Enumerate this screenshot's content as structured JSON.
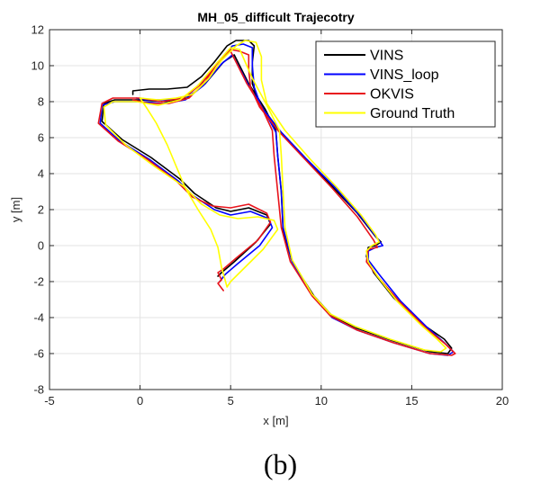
{
  "chart_data": {
    "type": "line",
    "title": "MH_05_difficult Trajecotry",
    "xlabel": "x [m]",
    "ylabel": "y [m]",
    "xlim": [
      -5,
      20
    ],
    "ylim": [
      -8,
      12
    ],
    "xticks": [
      -5,
      0,
      5,
      10,
      15,
      20
    ],
    "yticks": [
      -8,
      -6,
      -4,
      -2,
      0,
      2,
      4,
      6,
      8,
      10,
      12
    ],
    "grid": true,
    "legend_position": "top-right",
    "caption": "(b)",
    "series": [
      {
        "name": "VINS",
        "color": "#000000",
        "points": [
          [
            -0.4,
            8.4
          ],
          [
            -0.4,
            8.6
          ],
          [
            0.5,
            8.7
          ],
          [
            1.5,
            8.7
          ],
          [
            2.6,
            8.8
          ],
          [
            3.4,
            9.4
          ],
          [
            4.1,
            10.2
          ],
          [
            4.8,
            11.1
          ],
          [
            5.3,
            11.4
          ],
          [
            6.0,
            11.4
          ],
          [
            6.3,
            11.1
          ],
          [
            6.2,
            10.2
          ],
          [
            6.2,
            9.0
          ],
          [
            6.6,
            7.9
          ],
          [
            7.6,
            6.5
          ],
          [
            9.0,
            5.0
          ],
          [
            10.5,
            3.4
          ],
          [
            12.0,
            1.8
          ],
          [
            13.0,
            0.5
          ],
          [
            13.3,
            0.2
          ],
          [
            13.0,
            0.0
          ],
          [
            12.6,
            -0.1
          ],
          [
            12.5,
            -0.6
          ],
          [
            12.9,
            -1.5
          ],
          [
            14.0,
            -2.9
          ],
          [
            15.5,
            -4.3
          ],
          [
            16.8,
            -5.2
          ],
          [
            17.2,
            -5.7
          ],
          [
            17.0,
            -6.0
          ],
          [
            16.0,
            -5.9
          ],
          [
            14.0,
            -5.3
          ],
          [
            12.0,
            -4.6
          ],
          [
            10.6,
            -3.9
          ],
          [
            9.6,
            -2.8
          ],
          [
            8.4,
            -0.9
          ],
          [
            7.9,
            0.8
          ],
          [
            7.8,
            3.0
          ],
          [
            7.6,
            5.0
          ],
          [
            7.5,
            6.4
          ],
          [
            6.9,
            7.6
          ],
          [
            6.0,
            9.0
          ],
          [
            5.2,
            10.6
          ],
          [
            4.6,
            10.2
          ],
          [
            3.6,
            9.0
          ],
          [
            2.6,
            8.2
          ],
          [
            1.4,
            8.0
          ],
          [
            0.0,
            8.1
          ],
          [
            -1.4,
            8.1
          ],
          [
            -2.0,
            7.9
          ],
          [
            -2.1,
            6.9
          ],
          [
            -1.0,
            5.9
          ],
          [
            0.6,
            4.9
          ],
          [
            2.2,
            3.7
          ],
          [
            3.0,
            2.9
          ],
          [
            4.2,
            2.1
          ],
          [
            5.0,
            1.9
          ],
          [
            6.0,
            2.1
          ],
          [
            7.0,
            1.7
          ],
          [
            7.2,
            1.2
          ],
          [
            6.4,
            0.2
          ],
          [
            5.2,
            -0.9
          ],
          [
            4.5,
            -1.5
          ],
          [
            4.3,
            -1.7
          ]
        ]
      },
      {
        "name": "VINS_loop",
        "color": "#0000ff",
        "points": [
          [
            -0.2,
            8.2
          ],
          [
            0.3,
            8.1
          ],
          [
            1.5,
            8.1
          ],
          [
            2.6,
            8.3
          ],
          [
            3.5,
            9.2
          ],
          [
            4.3,
            10.2
          ],
          [
            5.1,
            11.1
          ],
          [
            5.7,
            11.2
          ],
          [
            6.2,
            11.0
          ],
          [
            6.2,
            10.0
          ],
          [
            6.3,
            8.8
          ],
          [
            6.7,
            7.7
          ],
          [
            7.8,
            6.3
          ],
          [
            9.2,
            4.8
          ],
          [
            10.8,
            3.2
          ],
          [
            12.2,
            1.6
          ],
          [
            13.1,
            0.4
          ],
          [
            13.4,
            0.0
          ],
          [
            13.0,
            -0.1
          ],
          [
            12.6,
            -0.3
          ],
          [
            12.6,
            -0.8
          ],
          [
            13.2,
            -1.6
          ],
          [
            14.4,
            -3.1
          ],
          [
            15.8,
            -4.5
          ],
          [
            16.8,
            -5.4
          ],
          [
            17.3,
            -5.9
          ],
          [
            17.0,
            -6.1
          ],
          [
            16.0,
            -6.0
          ],
          [
            14.0,
            -5.4
          ],
          [
            12.0,
            -4.7
          ],
          [
            10.6,
            -4.0
          ],
          [
            9.6,
            -2.9
          ],
          [
            8.4,
            -0.9
          ],
          [
            7.9,
            1.0
          ],
          [
            7.8,
            3.0
          ],
          [
            7.6,
            5.0
          ],
          [
            7.5,
            6.3
          ],
          [
            6.8,
            7.6
          ],
          [
            6.0,
            8.9
          ],
          [
            5.1,
            10.6
          ],
          [
            4.5,
            10.1
          ],
          [
            3.5,
            8.9
          ],
          [
            2.5,
            8.1
          ],
          [
            1.3,
            7.9
          ],
          [
            0.0,
            8.0
          ],
          [
            -1.4,
            8.0
          ],
          [
            -2.1,
            7.8
          ],
          [
            -2.2,
            6.8
          ],
          [
            -1.1,
            5.8
          ],
          [
            0.5,
            4.8
          ],
          [
            2.1,
            3.6
          ],
          [
            2.9,
            2.8
          ],
          [
            4.1,
            2.0
          ],
          [
            5.0,
            1.7
          ],
          [
            6.1,
            1.9
          ],
          [
            7.1,
            1.5
          ],
          [
            7.3,
            1.0
          ],
          [
            6.6,
            0.0
          ],
          [
            5.4,
            -1.0
          ],
          [
            4.7,
            -1.6
          ],
          [
            4.4,
            -2.0
          ]
        ]
      },
      {
        "name": "OKVIS",
        "color": "#e8141c",
        "points": [
          [
            -0.4,
            8.1
          ],
          [
            0.5,
            7.9
          ],
          [
            1.6,
            7.9
          ],
          [
            2.7,
            8.2
          ],
          [
            3.6,
            9.1
          ],
          [
            4.3,
            10.2
          ],
          [
            5.0,
            10.9
          ],
          [
            5.5,
            10.8
          ],
          [
            6.0,
            10.6
          ],
          [
            6.0,
            9.8
          ],
          [
            6.1,
            8.8
          ],
          [
            6.6,
            7.7
          ],
          [
            7.7,
            6.3
          ],
          [
            9.1,
            4.8
          ],
          [
            10.6,
            3.2
          ],
          [
            12.0,
            1.6
          ],
          [
            12.9,
            0.3
          ],
          [
            13.1,
            -0.1
          ],
          [
            12.6,
            -0.2
          ],
          [
            12.5,
            -0.9
          ],
          [
            13.1,
            -1.7
          ],
          [
            14.4,
            -3.2
          ],
          [
            15.8,
            -4.6
          ],
          [
            16.9,
            -5.5
          ],
          [
            17.4,
            -6.0
          ],
          [
            17.2,
            -6.1
          ],
          [
            16.0,
            -6.0
          ],
          [
            14.0,
            -5.4
          ],
          [
            12.0,
            -4.7
          ],
          [
            10.5,
            -3.9
          ],
          [
            9.5,
            -2.8
          ],
          [
            8.3,
            -0.9
          ],
          [
            7.8,
            1.0
          ],
          [
            7.6,
            3.0
          ],
          [
            7.4,
            5.0
          ],
          [
            7.3,
            6.4
          ],
          [
            6.7,
            7.7
          ],
          [
            5.9,
            9.0
          ],
          [
            5.0,
            10.8
          ],
          [
            4.4,
            10.3
          ],
          [
            3.4,
            9.0
          ],
          [
            2.4,
            8.2
          ],
          [
            1.2,
            8.0
          ],
          [
            0.0,
            8.2
          ],
          [
            -1.5,
            8.2
          ],
          [
            -2.1,
            7.9
          ],
          [
            -2.3,
            6.8
          ],
          [
            -1.2,
            5.8
          ],
          [
            0.4,
            4.8
          ],
          [
            2.0,
            3.6
          ],
          [
            2.9,
            2.7
          ],
          [
            4.0,
            2.2
          ],
          [
            5.0,
            2.1
          ],
          [
            6.0,
            2.3
          ],
          [
            7.0,
            1.8
          ],
          [
            7.2,
            1.3
          ],
          [
            6.5,
            0.3
          ],
          [
            5.3,
            -0.7
          ],
          [
            4.6,
            -1.3
          ],
          [
            4.3,
            -1.5
          ],
          [
            4.5,
            -1.9
          ],
          [
            4.3,
            -2.1
          ],
          [
            4.6,
            -2.5
          ]
        ]
      },
      {
        "name": "Ground Truth",
        "color": "#ffff00",
        "points": [
          [
            0.0,
            8.2
          ],
          [
            1.0,
            8.1
          ],
          [
            2.0,
            8.2
          ],
          [
            2.9,
            8.4
          ],
          [
            3.8,
            9.3
          ],
          [
            4.5,
            10.3
          ],
          [
            5.3,
            11.1
          ],
          [
            5.8,
            11.4
          ],
          [
            6.4,
            11.3
          ],
          [
            6.7,
            10.5
          ],
          [
            6.7,
            9.2
          ],
          [
            7.0,
            7.9
          ],
          [
            8.0,
            6.4
          ],
          [
            9.4,
            4.8
          ],
          [
            10.9,
            3.2
          ],
          [
            12.2,
            1.7
          ],
          [
            13.0,
            0.6
          ],
          [
            13.2,
            0.2
          ],
          [
            12.8,
            0.0
          ],
          [
            12.5,
            -0.3
          ],
          [
            12.6,
            -0.9
          ],
          [
            13.1,
            -1.7
          ],
          [
            14.2,
            -3.1
          ],
          [
            15.5,
            -4.4
          ],
          [
            16.4,
            -5.2
          ],
          [
            16.9,
            -5.7
          ],
          [
            16.6,
            -5.9
          ],
          [
            15.7,
            -5.8
          ],
          [
            13.8,
            -5.2
          ],
          [
            11.9,
            -4.5
          ],
          [
            10.5,
            -3.8
          ],
          [
            9.5,
            -2.7
          ],
          [
            8.4,
            -0.8
          ],
          [
            8.0,
            1.0
          ],
          [
            7.9,
            3.0
          ],
          [
            7.8,
            5.0
          ],
          [
            7.7,
            6.4
          ],
          [
            7.0,
            7.8
          ],
          [
            6.2,
            9.3
          ],
          [
            5.5,
            10.9
          ],
          [
            5.0,
            11.0
          ],
          [
            4.2,
            10.1
          ],
          [
            3.2,
            8.9
          ],
          [
            2.2,
            8.1
          ],
          [
            1.0,
            7.8
          ],
          [
            -0.2,
            8.0
          ],
          [
            -1.5,
            8.0
          ],
          [
            -2.0,
            7.7
          ],
          [
            -1.9,
            6.7
          ],
          [
            -0.8,
            5.6
          ],
          [
            0.8,
            4.4
          ],
          [
            2.4,
            3.3
          ],
          [
            3.4,
            2.3
          ],
          [
            4.4,
            1.7
          ],
          [
            5.4,
            1.5
          ],
          [
            6.5,
            1.6
          ],
          [
            7.4,
            1.4
          ],
          [
            7.6,
            0.9
          ],
          [
            6.8,
            -0.2
          ],
          [
            5.8,
            -1.2
          ],
          [
            5.0,
            -2.0
          ],
          [
            4.8,
            -2.3
          ],
          [
            4.5,
            -1.2
          ],
          [
            4.3,
            -0.1
          ],
          [
            3.9,
            0.9
          ],
          [
            3.2,
            2.0
          ],
          [
            2.5,
            3.2
          ],
          [
            2.0,
            4.4
          ],
          [
            1.5,
            5.6
          ],
          [
            0.9,
            6.8
          ],
          [
            0.4,
            7.6
          ],
          [
            0.0,
            8.2
          ]
        ]
      }
    ]
  }
}
